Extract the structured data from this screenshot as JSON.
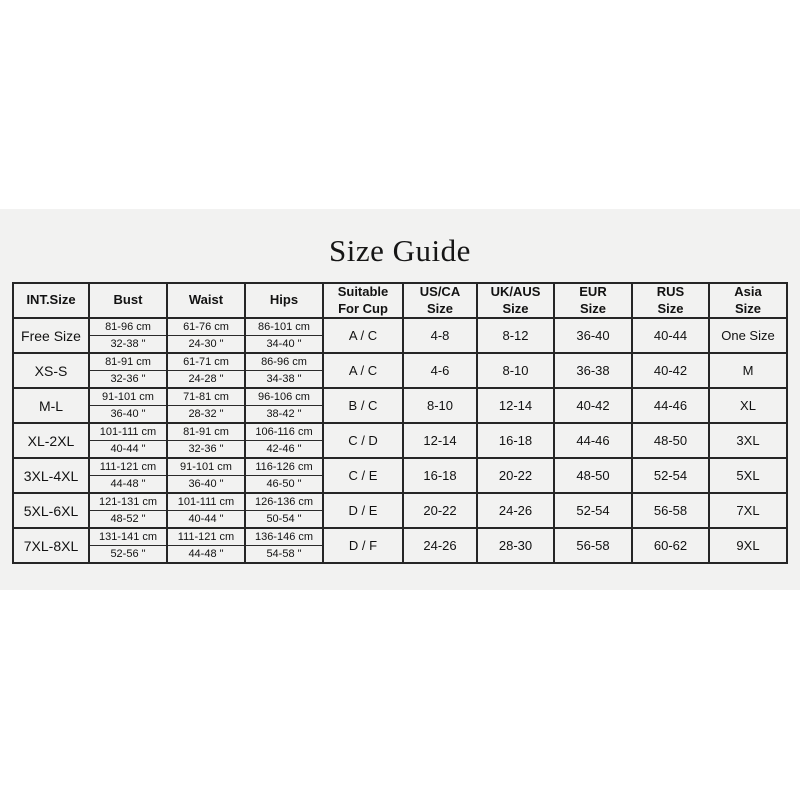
{
  "colors": {
    "page_background": "#ffffff",
    "panel_background": "#f2f2f1",
    "border": "#262626",
    "text": "#121212"
  },
  "title": "Size Guide",
  "table": {
    "headers": {
      "int_size": "INT.Size",
      "bust": "Bust",
      "waist": "Waist",
      "hips": "Hips",
      "cup": "Suitable\nFor Cup",
      "us_ca": "US/CA\nSize",
      "uk_aus": "UK/AUS\nSize",
      "eur": "EUR\nSize",
      "rus": "RUS\nSize",
      "asia": "Asia\nSize"
    },
    "rows": [
      {
        "int_size": "Free Size",
        "bust_cm": "81-96 cm",
        "waist_cm": "61-76 cm",
        "hips_cm": "86-101 cm",
        "bust_in": "32-38 \"",
        "waist_in": "24-30 \"",
        "hips_in": "34-40 \"",
        "cup": "A / C",
        "us_ca": "4-8",
        "uk_aus": "8-12",
        "eur": "36-40",
        "rus": "40-44",
        "asia": "One Size"
      },
      {
        "int_size": "XS-S",
        "bust_cm": "81-91 cm",
        "waist_cm": "61-71 cm",
        "hips_cm": "86-96 cm",
        "bust_in": "32-36 \"",
        "waist_in": "24-28 \"",
        "hips_in": "34-38 \"",
        "cup": "A / C",
        "us_ca": "4-6",
        "uk_aus": "8-10",
        "eur": "36-38",
        "rus": "40-42",
        "asia": "M"
      },
      {
        "int_size": "M-L",
        "bust_cm": "91-101 cm",
        "waist_cm": "71-81 cm",
        "hips_cm": "96-106 cm",
        "bust_in": "36-40 \"",
        "waist_in": "28-32 \"",
        "hips_in": "38-42 \"",
        "cup": "B / C",
        "us_ca": "8-10",
        "uk_aus": "12-14",
        "eur": "40-42",
        "rus": "44-46",
        "asia": "XL"
      },
      {
        "int_size": "XL-2XL",
        "bust_cm": "101-111 cm",
        "waist_cm": "81-91 cm",
        "hips_cm": "106-116 cm",
        "bust_in": "40-44 \"",
        "waist_in": "32-36 \"",
        "hips_in": "42-46 \"",
        "cup": "C / D",
        "us_ca": "12-14",
        "uk_aus": "16-18",
        "eur": "44-46",
        "rus": "48-50",
        "asia": "3XL"
      },
      {
        "int_size": "3XL-4XL",
        "bust_cm": "111-121 cm",
        "waist_cm": "91-101 cm",
        "hips_cm": "116-126 cm",
        "bust_in": "44-48 \"",
        "waist_in": "36-40 \"",
        "hips_in": "46-50 \"",
        "cup": "C / E",
        "us_ca": "16-18",
        "uk_aus": "20-22",
        "eur": "48-50",
        "rus": "52-54",
        "asia": "5XL"
      },
      {
        "int_size": "5XL-6XL",
        "bust_cm": "121-131 cm",
        "waist_cm": "101-111 cm",
        "hips_cm": "126-136 cm",
        "bust_in": "48-52 \"",
        "waist_in": "40-44 \"",
        "hips_in": "50-54 \"",
        "cup": "D / E",
        "us_ca": "20-22",
        "uk_aus": "24-26",
        "eur": "52-54",
        "rus": "56-58",
        "asia": "7XL"
      },
      {
        "int_size": "7XL-8XL",
        "bust_cm": "131-141 cm",
        "waist_cm": "111-121 cm",
        "hips_cm": "136-146 cm",
        "bust_in": "52-56 \"",
        "waist_in": "44-48 \"",
        "hips_in": "54-58 \"",
        "cup": "D / F",
        "us_ca": "24-26",
        "uk_aus": "28-30",
        "eur": "56-58",
        "rus": "60-62",
        "asia": "9XL"
      }
    ]
  }
}
